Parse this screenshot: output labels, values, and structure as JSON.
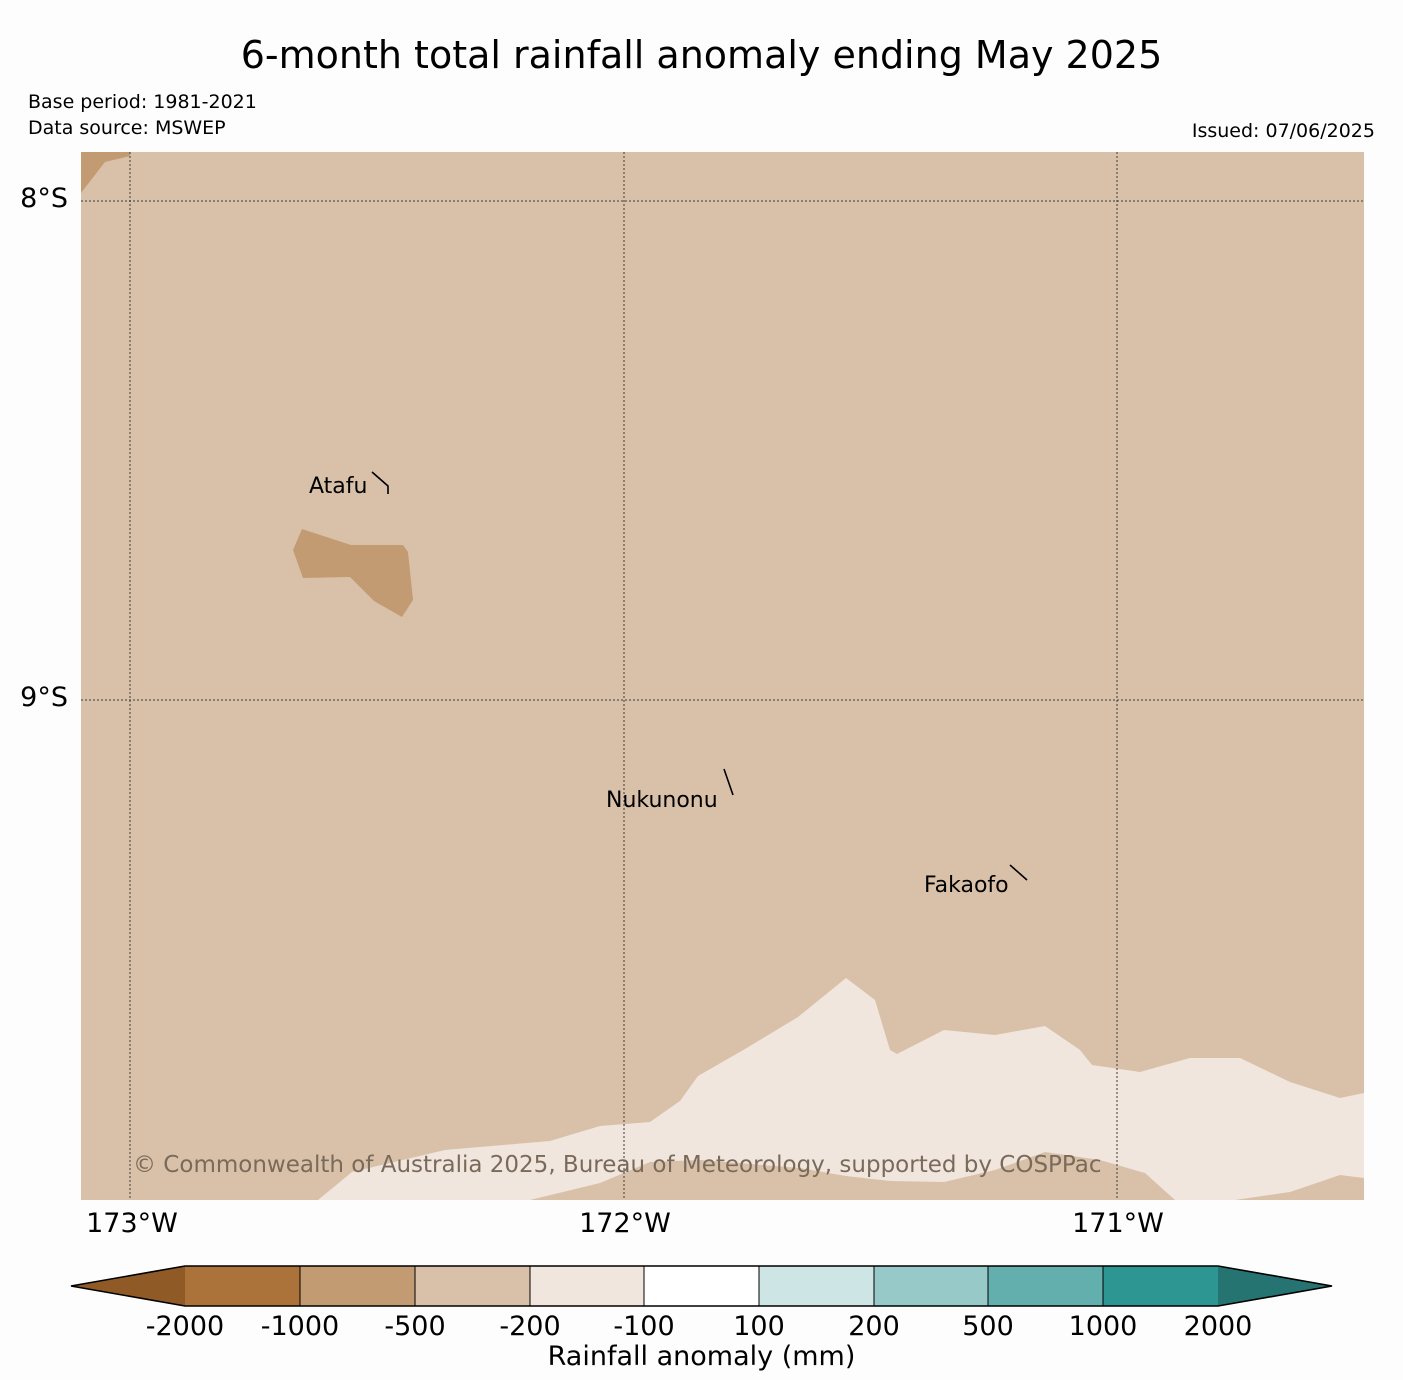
{
  "title": "6-month total rainfall anomaly ending May 2025",
  "meta": {
    "base_period": "Base period: 1981-2021",
    "data_source": "Data source: MSWEP",
    "issued": "Issued: 07/06/2025"
  },
  "map": {
    "lat_labels": [
      "8°S",
      "9°S"
    ],
    "lon_labels": [
      "173°W",
      "172°W",
      "171°W"
    ],
    "places": [
      {
        "name": "Atafu"
      },
      {
        "name": "Nukunonu"
      },
      {
        "name": "Fakaofo"
      }
    ],
    "copyright": "© Commonwealth of Australia 2025, Bureau of Meteorology, supported by COSPPac"
  },
  "colorbar": {
    "label": "Rainfall anomaly (mm)",
    "ticks": [
      "-2000",
      "-1000",
      "-500",
      "-200",
      "-100",
      "100",
      "200",
      "500",
      "1000",
      "2000"
    ],
    "colors": {
      "under": "#8f5a26",
      "bins": [
        "#ab733a",
        "#c39b72",
        "#d9c1a9",
        "#f0e6dd",
        "#ffffff",
        "#cde5e5",
        "#98c9c9",
        "#63afae",
        "#2e9692"
      ],
      "over": "#267472"
    }
  }
}
